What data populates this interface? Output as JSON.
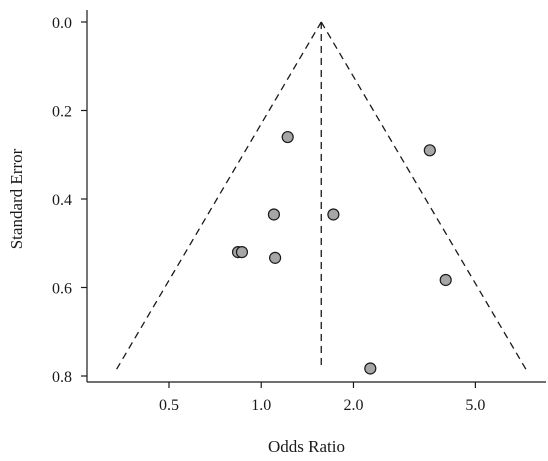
{
  "chart_data": {
    "type": "scatter",
    "title": "",
    "xlabel": "Odds Ratio",
    "ylabel": "Standard Error",
    "x_scale": "log",
    "x_ticks": [
      0.5,
      1.0,
      2.0,
      5.0
    ],
    "x_tick_labels": [
      "0.5",
      "1.0",
      "2.0",
      "5.0"
    ],
    "xlim": [
      0.27,
      8.5
    ],
    "y_ticks": [
      0.0,
      0.2,
      0.4,
      0.6,
      0.8
    ],
    "y_tick_labels": [
      "0.0",
      "0.2",
      "0.4",
      "0.6",
      "0.8"
    ],
    "ylim": [
      0.0,
      0.8
    ],
    "y_reversed": true,
    "grid": false,
    "legend": "none",
    "pooled_estimate": 1.57,
    "funnel_limits": {
      "se_max": 0.785
    },
    "points": [
      {
        "x": 1.22,
        "y": 0.26
      },
      {
        "x": 3.55,
        "y": 0.29
      },
      {
        "x": 1.1,
        "y": 0.435
      },
      {
        "x": 1.72,
        "y": 0.435
      },
      {
        "x": 0.84,
        "y": 0.52
      },
      {
        "x": 0.865,
        "y": 0.52
      },
      {
        "x": 1.11,
        "y": 0.533
      },
      {
        "x": 4.0,
        "y": 0.583
      },
      {
        "x": 2.27,
        "y": 0.783
      }
    ],
    "colors": {
      "point_fill": "#a6a6a6",
      "stroke": "#1a1a1a"
    }
  }
}
